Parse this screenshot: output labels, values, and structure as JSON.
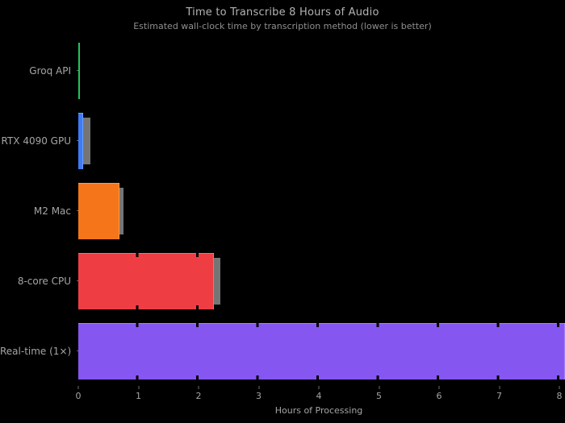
{
  "chart_data": {
    "type": "bar",
    "orientation": "horizontal",
    "title": "Time to Transcribe 8 Hours of Audio",
    "subtitle": "Estimated wall-clock time by transcription method (lower is better)",
    "xlabel": "Hours of Processing",
    "categories": [
      "Groq API",
      "RTX 4090 GPU",
      "M2 Mac",
      "8-core CPU",
      "Real-time (1×)"
    ],
    "values": [
      0.02,
      0.08,
      0.68,
      2.23,
      8.0
    ],
    "errors": [
      0,
      0.12,
      0.06,
      0.11,
      0
    ],
    "bar_colors": [
      "#22c55e",
      "#3e7bf6",
      "#f5761a",
      "#ee3e44",
      "#8657f0"
    ],
    "xlim": [
      0,
      8
    ],
    "xticks": [
      0,
      1,
      2,
      3,
      4,
      5,
      6,
      7,
      8
    ],
    "legend": "none",
    "grid": "off",
    "background_color": "#000000",
    "text_color": "#a5a5a5",
    "error_cap_color": "#8a8a8a"
  }
}
